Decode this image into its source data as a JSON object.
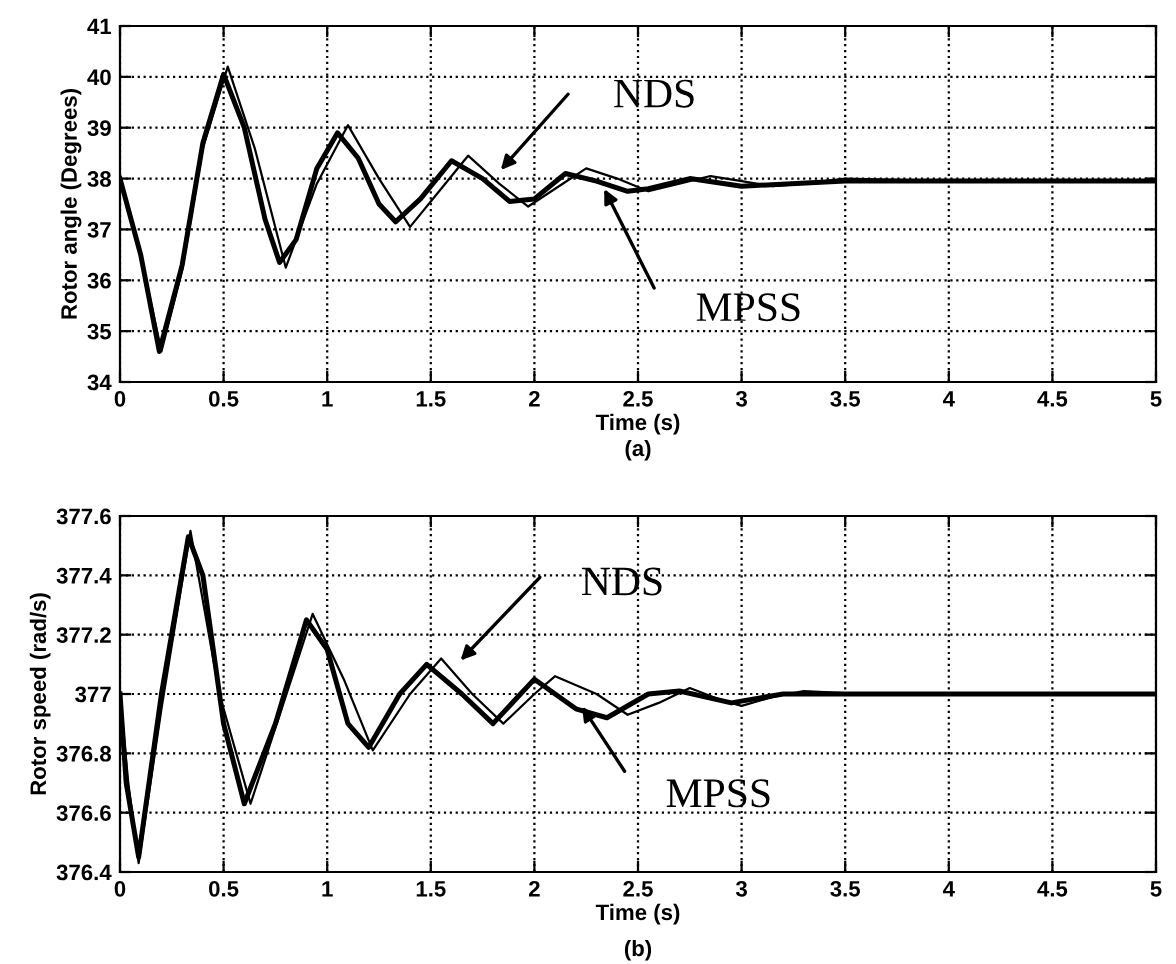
{
  "chart_data": [
    {
      "type": "line",
      "xlabel": "Time (s)",
      "ylabel": "Rotor angle (Degrees)",
      "annotations": [
        "(a)"
      ],
      "xlim": [
        0,
        5
      ],
      "xticks": [
        0,
        0.5,
        1,
        1.5,
        2,
        2.5,
        3,
        3.5,
        4,
        4.5,
        5
      ],
      "ylim": [
        34,
        41
      ],
      "yticks": [
        34,
        35,
        36,
        37,
        38,
        39,
        40,
        41
      ],
      "grid": true,
      "legend": "top",
      "series": [
        {
          "name": "NDS",
          "color": "#000000",
          "x": [
            0,
            0.1,
            0.2,
            0.3,
            0.4,
            0.52,
            0.65,
            0.8,
            0.95,
            1.1,
            1.25,
            1.4,
            1.55,
            1.68,
            1.83,
            1.97,
            2.1,
            2.25,
            2.4,
            2.55,
            2.7,
            2.85,
            3.0,
            3.15,
            3.3,
            3.5,
            4,
            4.5,
            5
          ],
          "values": [
            38,
            36.5,
            34.6,
            36.2,
            38.6,
            40.2,
            38.6,
            36.25,
            37.9,
            39.05,
            38.0,
            37.05,
            37.8,
            38.45,
            37.9,
            37.45,
            37.8,
            38.2,
            38.0,
            37.75,
            37.9,
            38.05,
            37.95,
            37.85,
            37.9,
            38.0,
            37.95,
            37.95,
            37.95
          ]
        },
        {
          "name": "MPSS",
          "color": "#000000",
          "x": [
            0,
            0.1,
            0.19,
            0.3,
            0.4,
            0.5,
            0.6,
            0.7,
            0.77,
            0.85,
            0.95,
            1.05,
            1.15,
            1.25,
            1.33,
            1.45,
            1.6,
            1.75,
            1.88,
            2.0,
            2.15,
            2.3,
            2.45,
            2.55,
            2.75,
            3.0,
            3.5,
            4,
            5
          ],
          "values": [
            38,
            36.5,
            34.6,
            36.3,
            38.7,
            40.05,
            39.0,
            37.2,
            36.35,
            36.8,
            38.2,
            38.9,
            38.4,
            37.5,
            37.15,
            37.6,
            38.35,
            38.0,
            37.55,
            37.6,
            38.1,
            37.95,
            37.75,
            37.8,
            38.0,
            37.85,
            37.95,
            37.95,
            37.95
          ]
        }
      ]
    },
    {
      "type": "line",
      "xlabel": "Time (s)",
      "ylabel": "Rotor speed (rad/s)",
      "annotations": [
        "(b)"
      ],
      "xlim": [
        0,
        5
      ],
      "xticks": [
        0,
        0.5,
        1,
        1.5,
        2,
        2.5,
        3,
        3.5,
        4,
        4.5,
        5
      ],
      "ylim": [
        376.4,
        377.6
      ],
      "yticks": [
        376.4,
        376.6,
        376.8,
        377,
        377.2,
        377.4,
        377.6
      ],
      "grid": true,
      "legend": "top",
      "series": [
        {
          "name": "NDS",
          "color": "#000000",
          "x": [
            0,
            0.04,
            0.09,
            0.2,
            0.34,
            0.48,
            0.63,
            0.78,
            0.93,
            1.08,
            1.22,
            1.4,
            1.55,
            1.7,
            1.85,
            2.0,
            2.1,
            2.3,
            2.45,
            2.6,
            2.75,
            2.9,
            3.0,
            3.15,
            3.3,
            3.6,
            4,
            5
          ],
          "values": [
            377.0,
            376.7,
            376.43,
            376.95,
            377.55,
            377.0,
            376.63,
            376.95,
            377.27,
            377.05,
            376.81,
            377.0,
            377.12,
            377.0,
            376.9,
            377.0,
            377.06,
            377.0,
            376.93,
            376.97,
            377.02,
            376.98,
            376.96,
            376.99,
            377.01,
            377.0,
            377.0,
            377.0
          ]
        },
        {
          "name": "MPSS",
          "color": "#000000",
          "x": [
            0,
            0.03,
            0.09,
            0.2,
            0.33,
            0.4,
            0.5,
            0.6,
            0.75,
            0.9,
            1.0,
            1.1,
            1.2,
            1.35,
            1.48,
            1.65,
            1.8,
            2.0,
            2.2,
            2.35,
            2.55,
            2.7,
            2.95,
            3.2,
            3.5,
            4,
            5
          ],
          "values": [
            377.0,
            376.7,
            376.45,
            377.0,
            377.53,
            377.4,
            376.9,
            376.63,
            376.9,
            377.25,
            377.15,
            376.9,
            376.82,
            377.0,
            377.1,
            377.0,
            376.9,
            377.05,
            376.95,
            376.92,
            377.0,
            377.01,
            376.97,
            377.0,
            377.0,
            377.0,
            377.0
          ]
        }
      ]
    }
  ]
}
